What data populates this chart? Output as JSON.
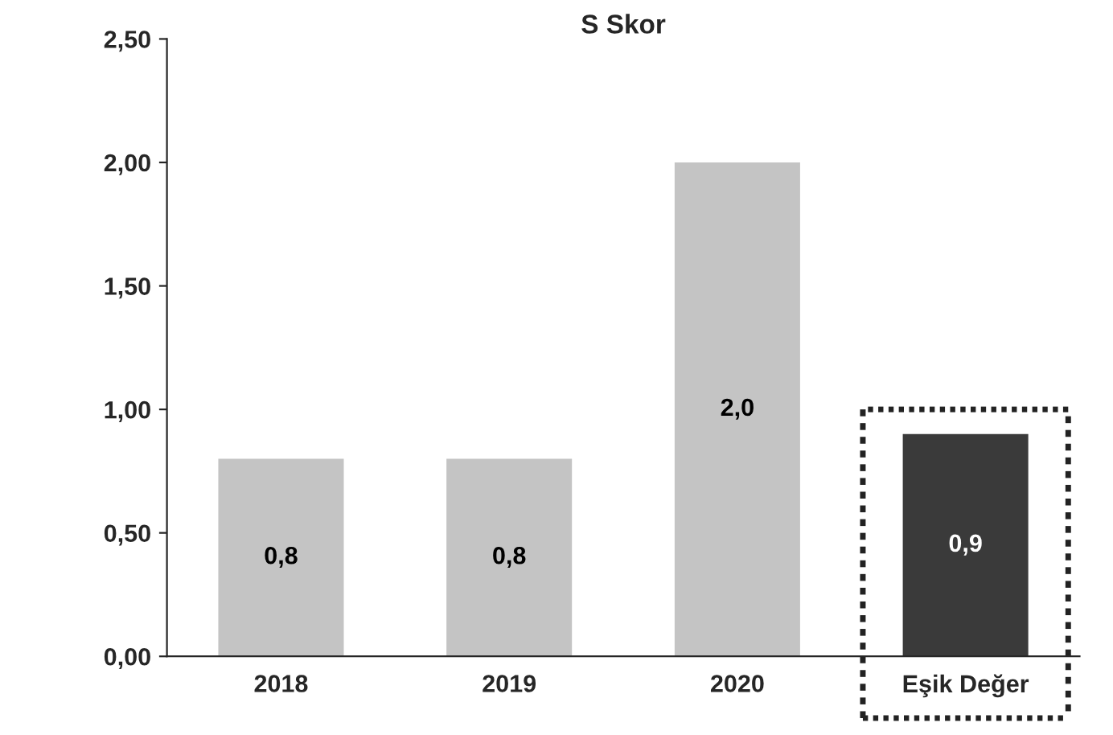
{
  "chart_data": {
    "type": "bar",
    "title": "S Skor",
    "categories": [
      "2018",
      "2019",
      "2020",
      "Eşik Değer"
    ],
    "values": [
      0.8,
      0.8,
      2.0,
      0.9
    ],
    "colors": [
      "#c4c4c4",
      "#c4c4c4",
      "#c4c4c4",
      "#3a3a3a"
    ],
    "value_labels": [
      "0,8",
      "0,8",
      "2,0",
      "0,9"
    ],
    "ylim": [
      0,
      2.5
    ],
    "yticks": [
      {
        "value": 0,
        "label": "0,00"
      },
      {
        "value": 0.5,
        "label": "0,50"
      },
      {
        "value": 1.0,
        "label": "1,00"
      },
      {
        "value": 1.5,
        "label": "1,50"
      },
      {
        "value": 2.0,
        "label": "2,00"
      },
      {
        "value": 2.5,
        "label": "2,50"
      }
    ],
    "grid": false,
    "legend": false
  }
}
